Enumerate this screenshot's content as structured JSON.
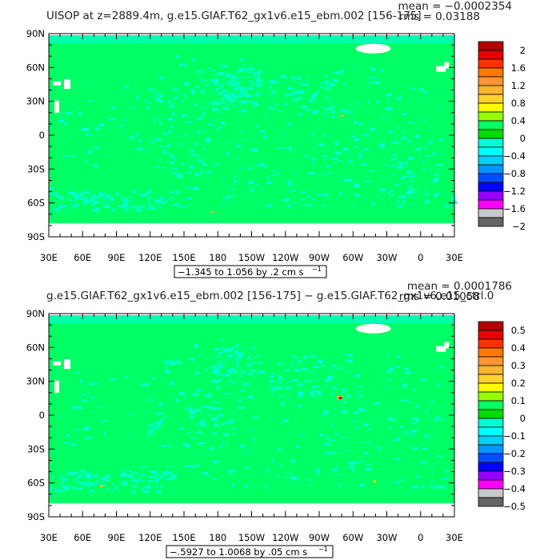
{
  "chart_data": [
    {
      "type": "heatmap",
      "title": "UISOP at z=2889.4m, g.e15.GIAF.T62_gx1v6.e15_ebm.002 [156-175]",
      "stats_mean": "mean = −0.0002354",
      "stats_rms": "rms = 0.03188",
      "range_label": "−1.345 to 1.056 by .2 cm s",
      "range_exp": "−1",
      "y_ticks": [
        "90N",
        "60N",
        "30N",
        "0",
        "30S",
        "60S",
        "90S"
      ],
      "x_ticks": [
        "30E",
        "60E",
        "90E",
        "120E",
        "150E",
        "180",
        "150W",
        "120W",
        "90W",
        "60W",
        "30W",
        "0",
        "30E"
      ],
      "legend_levels": [
        "2",
        "1.6",
        "1.2",
        "0.8",
        "0.4",
        "0",
        "−0.4",
        "−0.8",
        "−1.2",
        "−1.6",
        "−2"
      ],
      "legend_colors": [
        "#b40000",
        "#e60000",
        "#ff3200",
        "#ff7800",
        "#ff9632",
        "#ffb432",
        "#ffd232",
        "#ffff00",
        "#96ff00",
        "#00ff64",
        "#00dc00",
        "#00ffd2",
        "#00ffff",
        "#00d2ff",
        "#0096ff",
        "#0050ff",
        "#0000ff",
        "#9600ff",
        "#ff00ff",
        "#c8c8c8",
        "#646464"
      ]
    },
    {
      "type": "heatmap",
      "title": "g.e15.GIAF.T62_gx1v6.e15_ebm.002 [156-175] − g.e15.GIAF.T62_gx1v6.e15_ctrl.0",
      "stats_mean": "mean = 0.0001786",
      "stats_rms": "rms = 0.01058",
      "range_label": "−.5927 to 1.0068 by .05 cm s",
      "range_exp": "−1",
      "y_ticks": [
        "90N",
        "60N",
        "30N",
        "0",
        "30S",
        "60S",
        "90S"
      ],
      "x_ticks": [
        "30E",
        "60E",
        "90E",
        "120E",
        "150E",
        "180",
        "150W",
        "120W",
        "90W",
        "60W",
        "30W",
        "0",
        "30E"
      ],
      "legend_levels": [
        "0.5",
        "0.4",
        "0.3",
        "0.2",
        "0.1",
        "0",
        "−0.1",
        "−0.2",
        "−0.3",
        "−0.4",
        "−0.5"
      ],
      "legend_colors": [
        "#b40000",
        "#e60000",
        "#ff3200",
        "#ff7800",
        "#ff9632",
        "#ffb432",
        "#ffd232",
        "#ffff00",
        "#96ff00",
        "#00ff64",
        "#00dc00",
        "#00ffd2",
        "#00ffff",
        "#00d2ff",
        "#0096ff",
        "#0050ff",
        "#0000ff",
        "#9600ff",
        "#ff00ff",
        "#c8c8c8",
        "#646464"
      ]
    }
  ],
  "colors": {
    "field_zero": "#00ff64",
    "field_neg": "#00ffd2",
    "land": "#ffffff"
  }
}
